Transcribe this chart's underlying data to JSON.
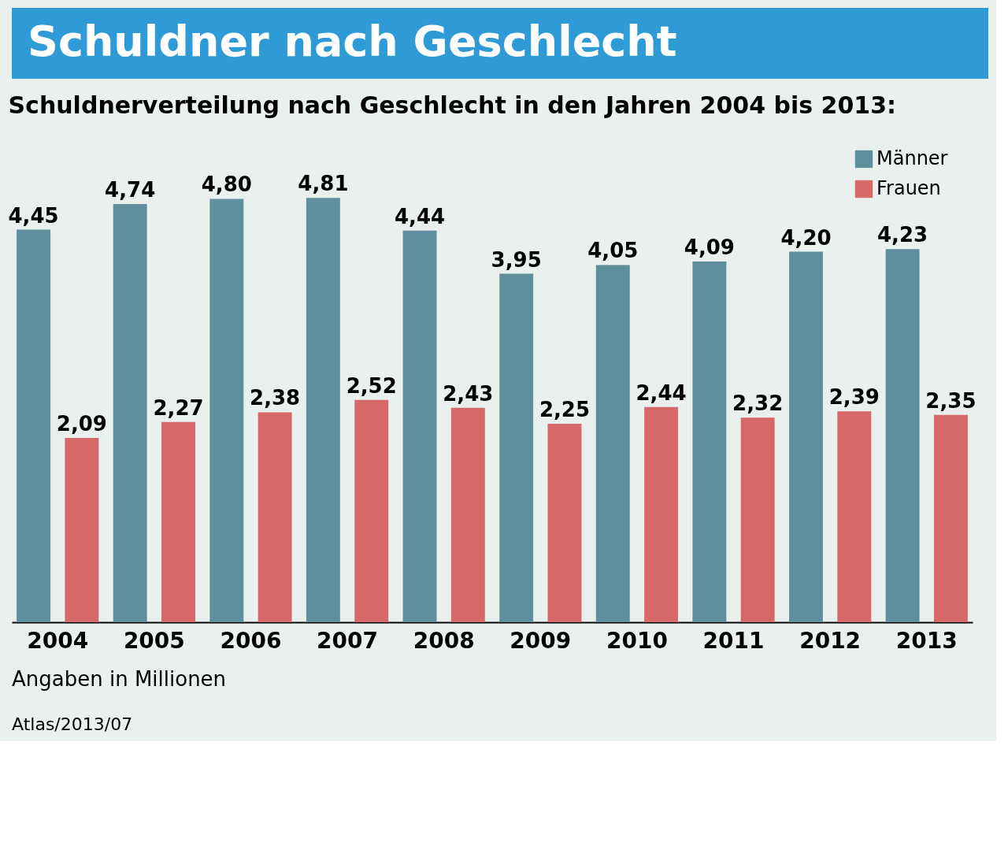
{
  "chart_data": {
    "type": "bar",
    "title": "Schuldner nach Geschlecht",
    "subtitle": "Schuldnerverteilung nach Geschlecht in den Jahren 2004 bis 2013:",
    "categories": [
      "2004",
      "2005",
      "2006",
      "2007",
      "2008",
      "2009",
      "2010",
      "2011",
      "2012",
      "2013"
    ],
    "series": [
      {
        "name": "Männer",
        "color": "#5f8f9c",
        "values": [
          4.45,
          4.74,
          4.8,
          4.81,
          4.44,
          3.95,
          4.05,
          4.09,
          4.2,
          4.23
        ],
        "value_labels": [
          "4,45",
          "4,74",
          "4,80",
          "4,81",
          "4,44",
          "3,95",
          "4,05",
          "4,09",
          "4,20",
          "4,23"
        ]
      },
      {
        "name": "Frauen",
        "color": "#d66868",
        "values": [
          2.09,
          2.27,
          2.38,
          2.52,
          2.43,
          2.25,
          2.44,
          2.32,
          2.39,
          2.35
        ],
        "value_labels": [
          "2,09",
          "2,27",
          "2,38",
          "2,52",
          "2,43",
          "2,25",
          "2,44",
          "2,32",
          "2,39",
          "2,35"
        ]
      }
    ],
    "legend": "top right",
    "grid": false,
    "annotations": [
      "Angaben in Millionen",
      "Atlas/2013/07"
    ]
  }
}
